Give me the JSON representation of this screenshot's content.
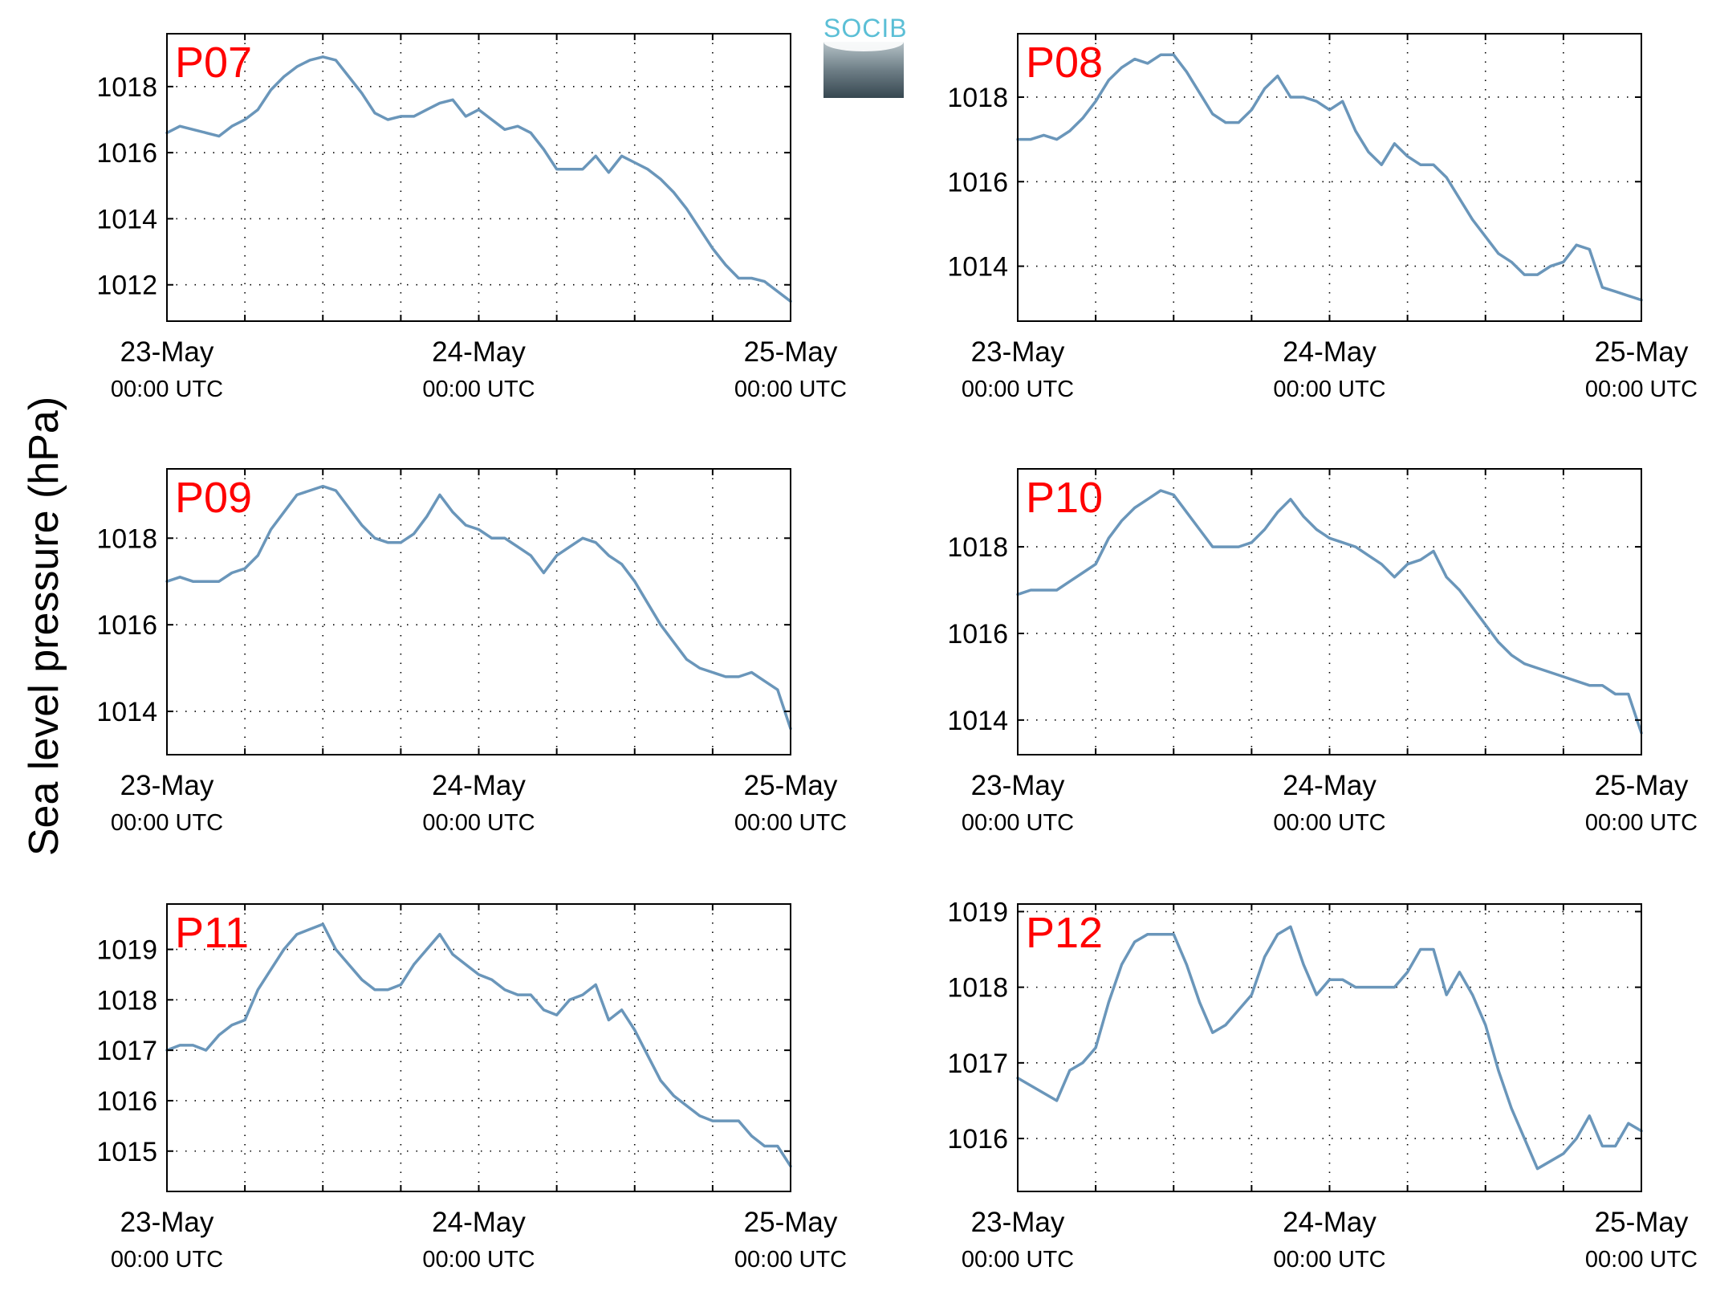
{
  "figure": {
    "ylabel": "Sea level pressure (hPa)",
    "logo_text": "SOCIB",
    "line_color": "#6a96ba",
    "label_color": "#ff0000"
  },
  "chart_data": [
    {
      "type": "line",
      "label": "P07",
      "xticks": [
        {
          "main": "23-May",
          "sub": "00:00 UTC"
        },
        {
          "main": "24-May",
          "sub": "00:00 UTC"
        },
        {
          "main": "25-May",
          "sub": "00:00 UTC"
        }
      ],
      "xlim": [
        0,
        48
      ],
      "ylim": [
        1010.9,
        1019.6
      ],
      "yticks": [
        1012,
        1014,
        1016,
        1018
      ],
      "grid": true,
      "x": [
        0,
        1,
        2,
        3,
        4,
        5,
        6,
        7,
        8,
        9,
        10,
        11,
        12,
        13,
        14,
        15,
        16,
        17,
        18,
        19,
        20,
        21,
        22,
        23,
        24,
        25,
        26,
        27,
        28,
        29,
        30,
        31,
        32,
        33,
        34,
        35,
        36,
        37,
        38,
        39,
        40,
        41,
        42,
        43,
        44,
        45,
        46,
        47,
        48
      ],
      "values": [
        1016.6,
        1016.8,
        1016.7,
        1016.6,
        1016.5,
        1016.8,
        1017.0,
        1017.3,
        1017.9,
        1018.3,
        1018.6,
        1018.8,
        1018.9,
        1018.8,
        1018.3,
        1017.8,
        1017.2,
        1017.0,
        1017.1,
        1017.1,
        1017.3,
        1017.5,
        1017.6,
        1017.1,
        1017.3,
        1017.0,
        1016.7,
        1016.8,
        1016.6,
        1016.1,
        1015.5,
        1015.5,
        1015.5,
        1015.9,
        1015.4,
        1015.9,
        1015.7,
        1015.5,
        1015.2,
        1014.8,
        1014.3,
        1013.7,
        1013.1,
        1012.6,
        1012.2,
        1012.2,
        1012.1,
        1011.8,
        1011.5
      ]
    },
    {
      "type": "line",
      "label": "P08",
      "xticks": [
        {
          "main": "23-May",
          "sub": "00:00 UTC"
        },
        {
          "main": "24-May",
          "sub": "00:00 UTC"
        },
        {
          "main": "25-May",
          "sub": "00:00 UTC"
        }
      ],
      "xlim": [
        0,
        48
      ],
      "ylim": [
        1012.7,
        1019.5
      ],
      "yticks": [
        1014,
        1016,
        1018
      ],
      "grid": true,
      "x": [
        0,
        1,
        2,
        3,
        4,
        5,
        6,
        7,
        8,
        9,
        10,
        11,
        12,
        13,
        14,
        15,
        16,
        17,
        18,
        19,
        20,
        21,
        22,
        23,
        24,
        25,
        26,
        27,
        28,
        29,
        30,
        31,
        32,
        33,
        34,
        35,
        36,
        37,
        38,
        39,
        40,
        41,
        42,
        43,
        44,
        45,
        46,
        47,
        48
      ],
      "values": [
        1017.0,
        1017.0,
        1017.1,
        1017.0,
        1017.2,
        1017.5,
        1017.9,
        1018.4,
        1018.7,
        1018.9,
        1018.8,
        1019.0,
        1019.0,
        1018.6,
        1018.1,
        1017.6,
        1017.4,
        1017.4,
        1017.7,
        1018.2,
        1018.5,
        1018.0,
        1018.0,
        1017.9,
        1017.7,
        1017.9,
        1017.2,
        1016.7,
        1016.4,
        1016.9,
        1016.6,
        1016.4,
        1016.4,
        1016.1,
        1015.6,
        1015.1,
        1014.7,
        1014.3,
        1014.1,
        1013.8,
        1013.8,
        1014.0,
        1014.1,
        1014.5,
        1014.4,
        1013.5,
        1013.4,
        1013.3,
        1013.2
      ]
    },
    {
      "type": "line",
      "label": "P09",
      "xticks": [
        {
          "main": "23-May",
          "sub": "00:00 UTC"
        },
        {
          "main": "24-May",
          "sub": "00:00 UTC"
        },
        {
          "main": "25-May",
          "sub": "00:00 UTC"
        }
      ],
      "xlim": [
        0,
        48
      ],
      "ylim": [
        1013.0,
        1019.6
      ],
      "yticks": [
        1014,
        1016,
        1018
      ],
      "grid": true,
      "x": [
        0,
        1,
        2,
        3,
        4,
        5,
        6,
        7,
        8,
        9,
        10,
        11,
        12,
        13,
        14,
        15,
        16,
        17,
        18,
        19,
        20,
        21,
        22,
        23,
        24,
        25,
        26,
        27,
        28,
        29,
        30,
        31,
        32,
        33,
        34,
        35,
        36,
        37,
        38,
        39,
        40,
        41,
        42,
        43,
        44,
        45,
        46,
        47,
        48
      ],
      "values": [
        1017.0,
        1017.1,
        1017.0,
        1017.0,
        1017.0,
        1017.2,
        1017.3,
        1017.6,
        1018.2,
        1018.6,
        1019.0,
        1019.1,
        1019.2,
        1019.1,
        1018.7,
        1018.3,
        1018.0,
        1017.9,
        1017.9,
        1018.1,
        1018.5,
        1019.0,
        1018.6,
        1018.3,
        1018.2,
        1018.0,
        1018.0,
        1017.8,
        1017.6,
        1017.2,
        1017.6,
        1017.8,
        1018.0,
        1017.9,
        1017.6,
        1017.4,
        1017.0,
        1016.5,
        1016.0,
        1015.6,
        1015.2,
        1015.0,
        1014.9,
        1014.8,
        1014.8,
        1014.9,
        1014.7,
        1014.5,
        1013.6
      ]
    },
    {
      "type": "line",
      "label": "P10",
      "xticks": [
        {
          "main": "23-May",
          "sub": "00:00 UTC"
        },
        {
          "main": "24-May",
          "sub": "00:00 UTC"
        },
        {
          "main": "25-May",
          "sub": "00:00 UTC"
        }
      ],
      "xlim": [
        0,
        48
      ],
      "ylim": [
        1013.2,
        1019.8
      ],
      "yticks": [
        1014,
        1016,
        1018
      ],
      "grid": true,
      "x": [
        0,
        1,
        2,
        3,
        4,
        5,
        6,
        7,
        8,
        9,
        10,
        11,
        12,
        13,
        14,
        15,
        16,
        17,
        18,
        19,
        20,
        21,
        22,
        23,
        24,
        25,
        26,
        27,
        28,
        29,
        30,
        31,
        32,
        33,
        34,
        35,
        36,
        37,
        38,
        39,
        40,
        41,
        42,
        43,
        44,
        45,
        46,
        47,
        48
      ],
      "values": [
        1016.9,
        1017.0,
        1017.0,
        1017.0,
        1017.2,
        1017.4,
        1017.6,
        1018.2,
        1018.6,
        1018.9,
        1019.1,
        1019.3,
        1019.2,
        1018.8,
        1018.4,
        1018.0,
        1018.0,
        1018.0,
        1018.1,
        1018.4,
        1018.8,
        1019.1,
        1018.7,
        1018.4,
        1018.2,
        1018.1,
        1018.0,
        1017.8,
        1017.6,
        1017.3,
        1017.6,
        1017.7,
        1017.9,
        1017.3,
        1017.0,
        1016.6,
        1016.2,
        1015.8,
        1015.5,
        1015.3,
        1015.2,
        1015.1,
        1015.0,
        1014.9,
        1014.8,
        1014.8,
        1014.6,
        1014.6,
        1013.7
      ]
    },
    {
      "type": "line",
      "label": "P11",
      "xticks": [
        {
          "main": "23-May",
          "sub": "00:00 UTC"
        },
        {
          "main": "24-May",
          "sub": "00:00 UTC"
        },
        {
          "main": "25-May",
          "sub": "00:00 UTC"
        }
      ],
      "xlim": [
        0,
        48
      ],
      "ylim": [
        1014.2,
        1019.9
      ],
      "yticks": [
        1015,
        1016,
        1017,
        1018,
        1019
      ],
      "grid": true,
      "x": [
        0,
        1,
        2,
        3,
        4,
        5,
        6,
        7,
        8,
        9,
        10,
        11,
        12,
        13,
        14,
        15,
        16,
        17,
        18,
        19,
        20,
        21,
        22,
        23,
        24,
        25,
        26,
        27,
        28,
        29,
        30,
        31,
        32,
        33,
        34,
        35,
        36,
        37,
        38,
        39,
        40,
        41,
        42,
        43,
        44,
        45,
        46,
        47,
        48
      ],
      "values": [
        1017.0,
        1017.1,
        1017.1,
        1017.0,
        1017.3,
        1017.5,
        1017.6,
        1018.2,
        1018.6,
        1019.0,
        1019.3,
        1019.4,
        1019.5,
        1019.0,
        1018.7,
        1018.4,
        1018.2,
        1018.2,
        1018.3,
        1018.7,
        1019.0,
        1019.3,
        1018.9,
        1018.7,
        1018.5,
        1018.4,
        1018.2,
        1018.1,
        1018.1,
        1017.8,
        1017.7,
        1018.0,
        1018.1,
        1018.3,
        1017.6,
        1017.8,
        1017.4,
        1016.9,
        1016.4,
        1016.1,
        1015.9,
        1015.7,
        1015.6,
        1015.6,
        1015.6,
        1015.3,
        1015.1,
        1015.1,
        1014.7
      ]
    },
    {
      "type": "line",
      "label": "P12",
      "xticks": [
        {
          "main": "23-May",
          "sub": "00:00 UTC"
        },
        {
          "main": "24-May",
          "sub": "00:00 UTC"
        },
        {
          "main": "25-May",
          "sub": "00:00 UTC"
        }
      ],
      "xlim": [
        0,
        48
      ],
      "ylim": [
        1015.3,
        1019.1
      ],
      "yticks": [
        1016,
        1017,
        1018,
        1019
      ],
      "grid": true,
      "x": [
        0,
        1,
        2,
        3,
        4,
        5,
        6,
        7,
        8,
        9,
        10,
        11,
        12,
        13,
        14,
        15,
        16,
        17,
        18,
        19,
        20,
        21,
        22,
        23,
        24,
        25,
        26,
        27,
        28,
        29,
        30,
        31,
        32,
        33,
        34,
        35,
        36,
        37,
        38,
        39,
        40,
        41,
        42,
        43,
        44,
        45,
        46,
        47,
        48
      ],
      "values": [
        1016.8,
        1016.7,
        1016.6,
        1016.5,
        1016.9,
        1017.0,
        1017.2,
        1017.8,
        1018.3,
        1018.6,
        1018.7,
        1018.7,
        1018.7,
        1018.3,
        1017.8,
        1017.4,
        1017.5,
        1017.7,
        1017.9,
        1018.4,
        1018.7,
        1018.8,
        1018.3,
        1017.9,
        1018.1,
        1018.1,
        1018.0,
        1018.0,
        1018.0,
        1018.0,
        1018.2,
        1018.5,
        1018.5,
        1017.9,
        1018.2,
        1017.9,
        1017.5,
        1016.9,
        1016.4,
        1016.0,
        1015.6,
        1015.7,
        1015.8,
        1016.0,
        1016.3,
        1015.9,
        1015.9,
        1016.2,
        1016.1
      ]
    }
  ]
}
